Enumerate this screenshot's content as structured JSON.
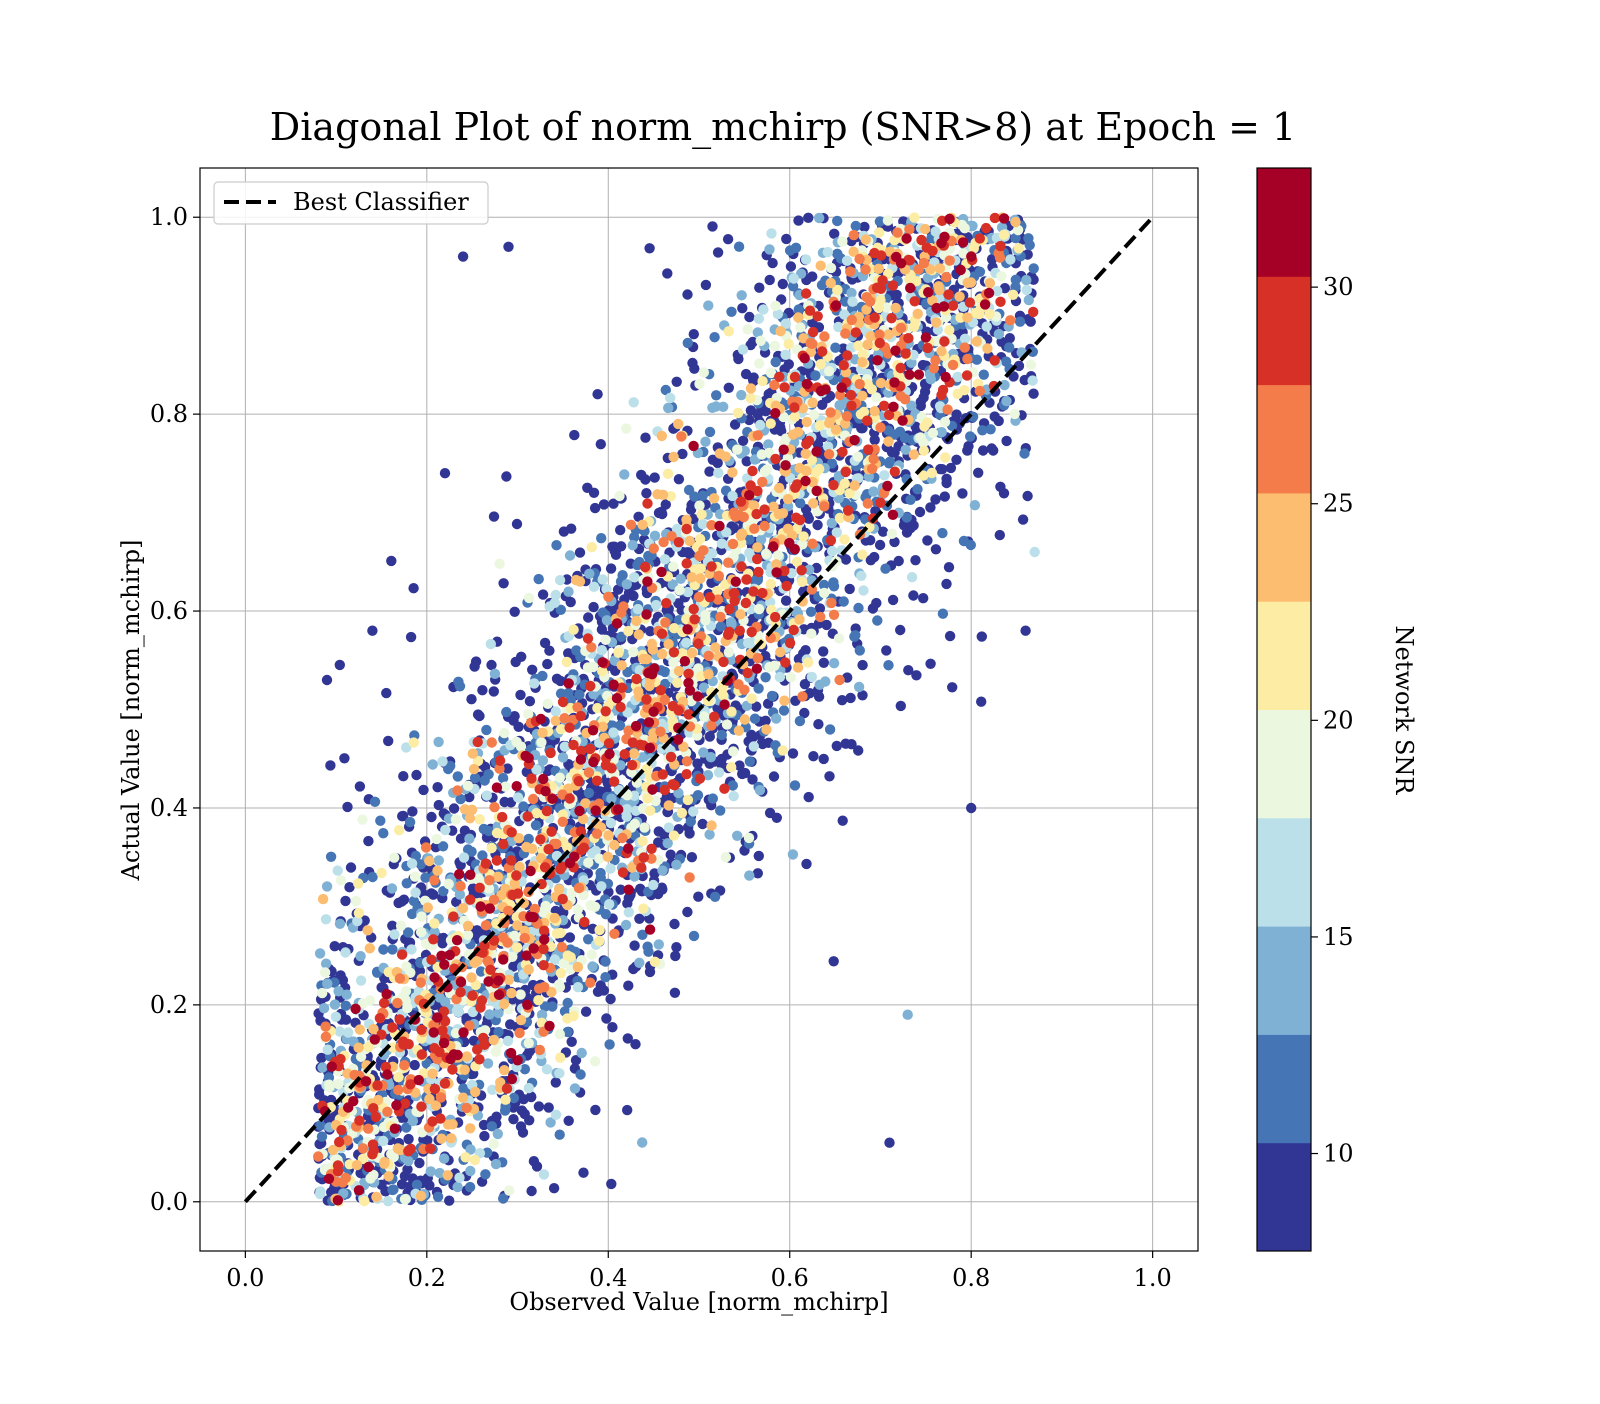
{
  "chart_data": {
    "type": "scatter",
    "title": "Diagonal Plot of norm_mchirp (SNR>8) at Epoch = 1",
    "xlabel": "Observed Value [norm_mchirp]",
    "ylabel": "Actual Value [norm_mchirp]",
    "xlim": [
      -0.05,
      1.05
    ],
    "ylim": [
      -0.05,
      1.05
    ],
    "xticks": [
      0.0,
      0.2,
      0.4,
      0.6,
      0.8,
      1.0
    ],
    "yticks": [
      0.0,
      0.2,
      0.4,
      0.6,
      0.8,
      1.0
    ],
    "xtick_labels": [
      "0.0",
      "0.2",
      "0.4",
      "0.6",
      "0.8",
      "1.0"
    ],
    "ytick_labels": [
      "0.0",
      "0.2",
      "0.4",
      "0.6",
      "0.8",
      "1.0"
    ],
    "grid": true,
    "legend": {
      "position": "top-left",
      "entries": [
        "Best Classifier"
      ]
    },
    "reference_line": {
      "label": "Best Classifier",
      "style": "dashed",
      "color": "#000000",
      "x": [
        0.0,
        1.0
      ],
      "y": [
        0.0,
        1.0
      ]
    },
    "colorbar": {
      "label": "Network SNR",
      "colormap": "RdYlBu_r",
      "range": [
        7.75,
        32.75
      ],
      "ticks": [
        10,
        15,
        20,
        25,
        30
      ],
      "tick_labels": [
        "10",
        "15",
        "20",
        "25",
        "30"
      ],
      "colors": [
        "#313695",
        "#4575b4",
        "#7fb1d5",
        "#bce0ea",
        "#ecf7e0",
        "#fdeca4",
        "#fdbd70",
        "#f47c4a",
        "#d73027",
        "#a50026"
      ]
    },
    "series": [
      {
        "density_model": "correlated cloud around diagonal, pred = 0.55*obs + 0.45*actual + noise",
        "x_range": [
          0.08,
          0.87
        ],
        "y_range": [
          0.0,
          1.0
        ],
        "snr_range": [
          8,
          33
        ],
        "points": [
          {
            "x": 0.09,
            "y": 0.53,
            "snr": 9
          },
          {
            "x": 0.14,
            "y": 0.58,
            "snr": 9
          },
          {
            "x": 0.24,
            "y": 0.96,
            "snr": 9
          },
          {
            "x": 0.29,
            "y": 0.97,
            "snr": 9
          },
          {
            "x": 0.22,
            "y": 0.74,
            "snr": 9
          },
          {
            "x": 0.31,
            "y": 0.25,
            "snr": 32
          },
          {
            "x": 0.56,
            "y": 0.62,
            "snr": 29
          },
          {
            "x": 0.71,
            "y": 0.06,
            "snr": 9
          },
          {
            "x": 0.73,
            "y": 0.19,
            "snr": 13
          },
          {
            "x": 0.8,
            "y": 0.4,
            "snr": 9
          },
          {
            "x": 0.86,
            "y": 0.58,
            "snr": 9
          },
          {
            "x": 0.87,
            "y": 0.66,
            "snr": 16
          },
          {
            "x": 0.42,
            "y": 0.47,
            "snr": 27
          },
          {
            "x": 0.55,
            "y": 0.52,
            "snr": 27
          },
          {
            "x": 0.7,
            "y": 0.71,
            "snr": 29
          },
          {
            "x": 0.78,
            "y": 0.85,
            "snr": 27
          },
          {
            "x": 0.38,
            "y": 0.46,
            "snr": 29
          },
          {
            "x": 0.22,
            "y": 0.12,
            "snr": 29
          },
          {
            "x": 0.18,
            "y": 0.16,
            "snr": 29
          },
          {
            "x": 0.43,
            "y": 0.16,
            "snr": 9
          }
        ]
      }
    ]
  }
}
